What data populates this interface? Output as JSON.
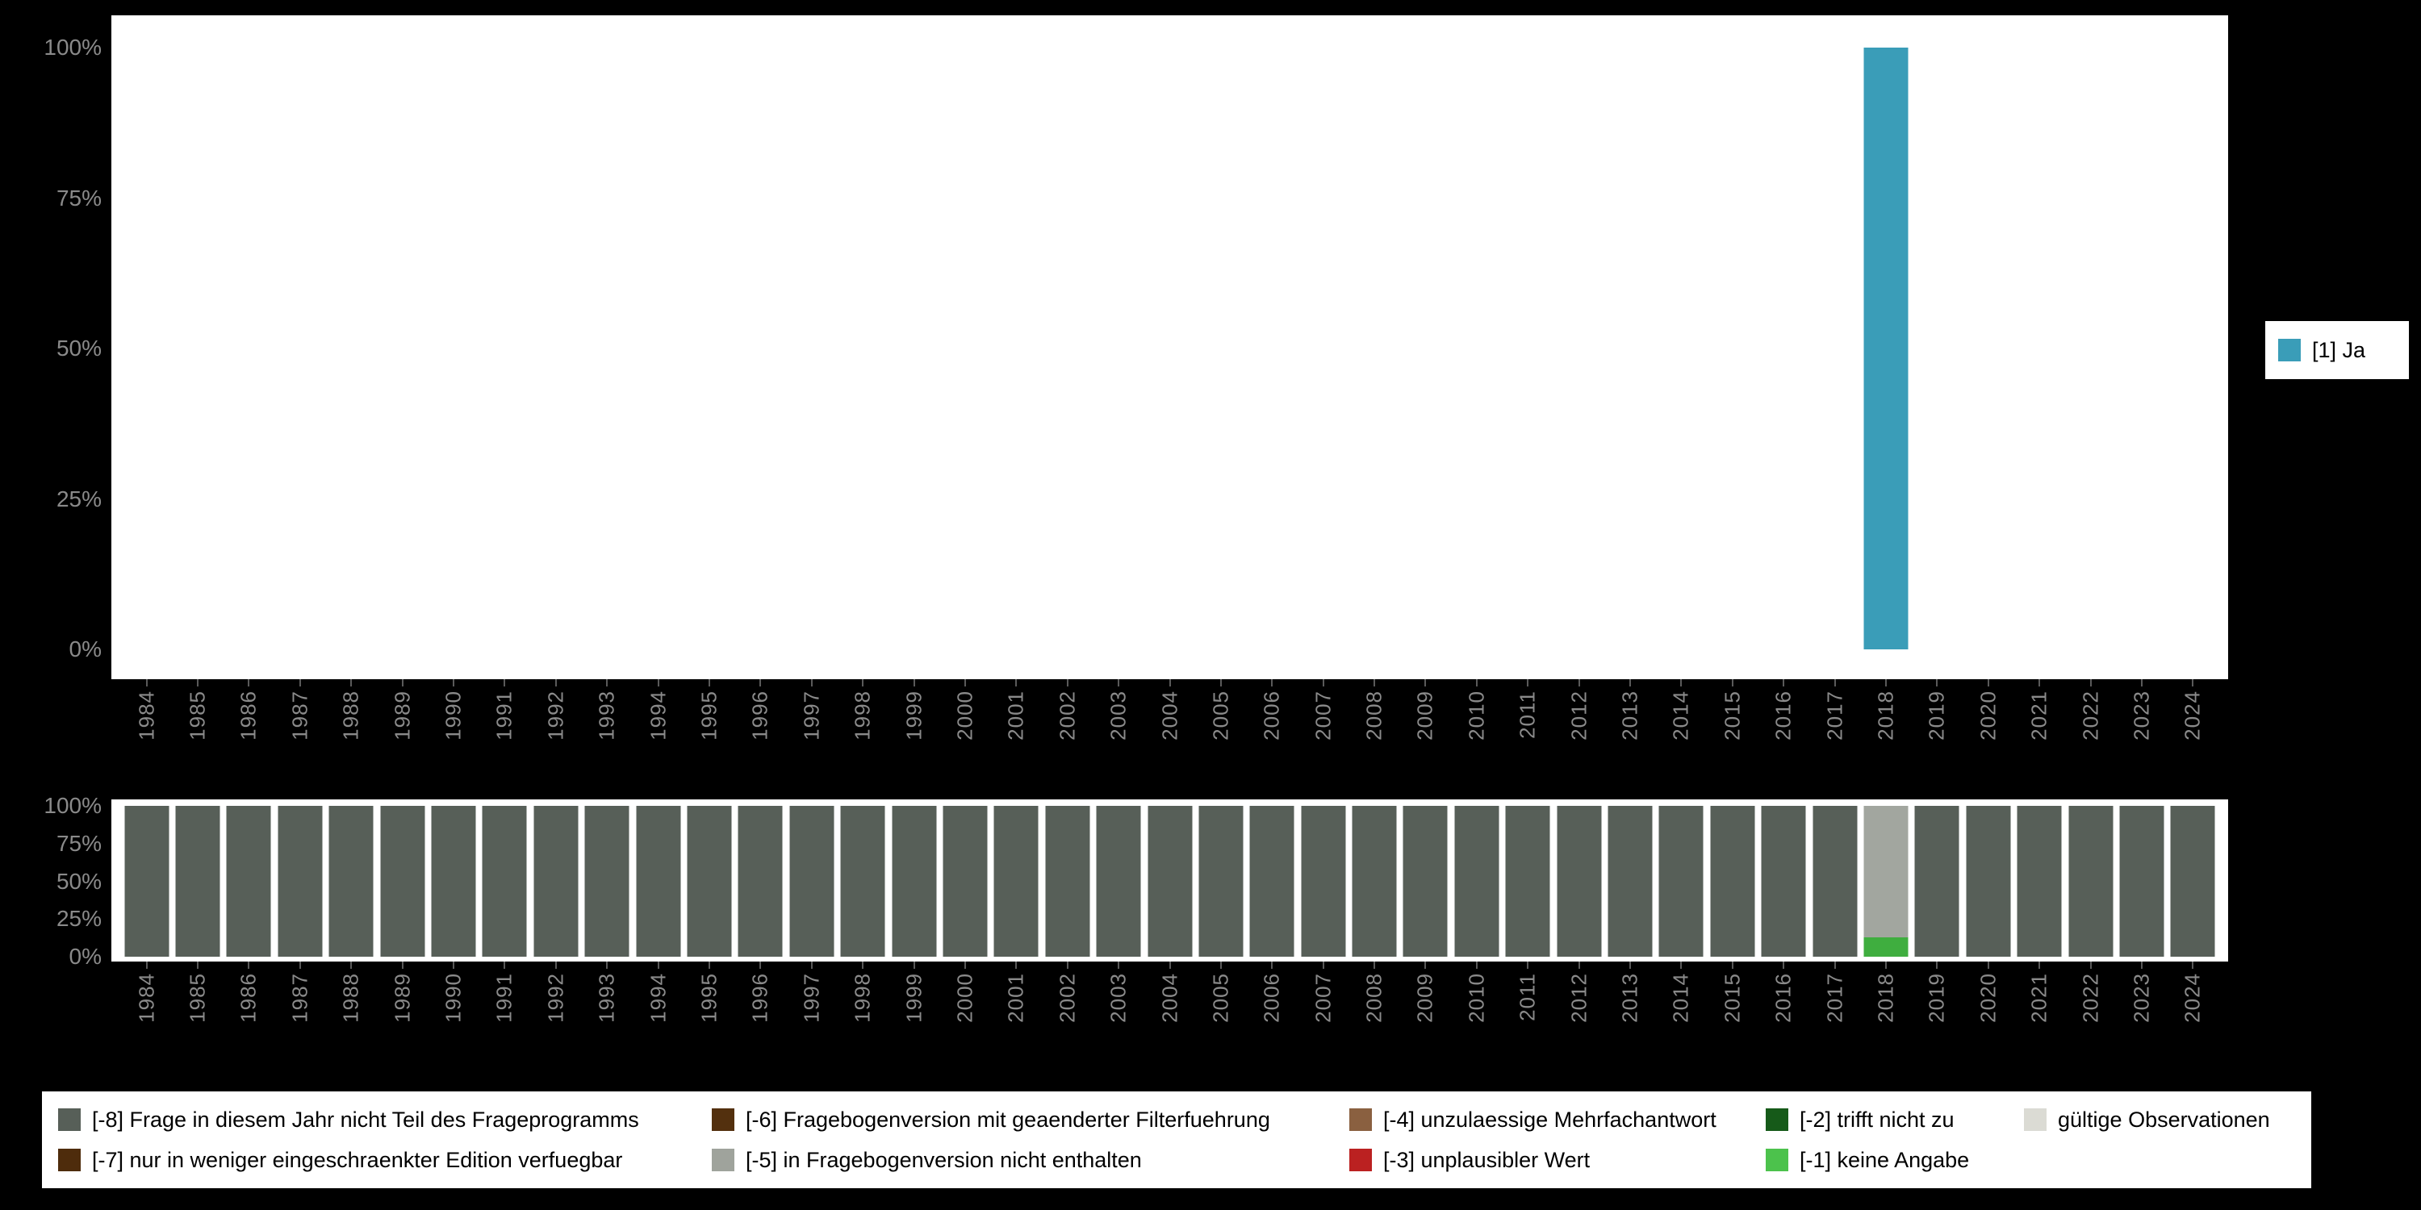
{
  "axes": {
    "years": [
      "1984",
      "1985",
      "1986",
      "1987",
      "1988",
      "1989",
      "1990",
      "1991",
      "1992",
      "1993",
      "1994",
      "1995",
      "1996",
      "1997",
      "1998",
      "1999",
      "2000",
      "2001",
      "2002",
      "2003",
      "2004",
      "2005",
      "2006",
      "2007",
      "2008",
      "2009",
      "2010",
      "2011",
      "2012",
      "2013",
      "2014",
      "2015",
      "2016",
      "2017",
      "2018",
      "2019",
      "2020",
      "2021",
      "2022",
      "2023",
      "2024"
    ],
    "y_ticks": [
      "100%",
      "75%",
      "50%",
      "25%",
      "0%"
    ]
  },
  "top_chart_legend": {
    "label": "[1] Ja",
    "color": "#3A9DB8"
  },
  "chart_data": [
    {
      "type": "bar",
      "title": "",
      "xlabel": "",
      "ylabel": "",
      "ylim": [
        0,
        100
      ],
      "y_ticks": [
        "100%",
        "75%",
        "50%",
        "25%",
        "0%"
      ],
      "grid": false,
      "legend_position": "right",
      "x": [
        "1984",
        "1985",
        "1986",
        "1987",
        "1988",
        "1989",
        "1990",
        "1991",
        "1992",
        "1993",
        "1994",
        "1995",
        "1996",
        "1997",
        "1998",
        "1999",
        "2000",
        "2001",
        "2002",
        "2003",
        "2004",
        "2005",
        "2006",
        "2007",
        "2008",
        "2009",
        "2010",
        "2011",
        "2012",
        "2013",
        "2014",
        "2015",
        "2016",
        "2017",
        "2018",
        "2019",
        "2020",
        "2021",
        "2022",
        "2023",
        "2024"
      ],
      "series": [
        {
          "name": "[1] Ja",
          "color": "#3A9DB8",
          "values": [
            0,
            0,
            0,
            0,
            0,
            0,
            0,
            0,
            0,
            0,
            0,
            0,
            0,
            0,
            0,
            0,
            0,
            0,
            0,
            0,
            0,
            0,
            0,
            0,
            0,
            0,
            0,
            0,
            0,
            0,
            0,
            0,
            0,
            0,
            100,
            0,
            0,
            0,
            0,
            0,
            0
          ]
        }
      ]
    },
    {
      "type": "stacked-bar",
      "title": "",
      "xlabel": "",
      "ylabel": "",
      "ylim": [
        0,
        100
      ],
      "y_ticks": [
        "100%",
        "75%",
        "50%",
        "25%",
        "0%"
      ],
      "grid": false,
      "legend_position": "bottom",
      "x": [
        "1984",
        "1985",
        "1986",
        "1987",
        "1988",
        "1989",
        "1990",
        "1991",
        "1992",
        "1993",
        "1994",
        "1995",
        "1996",
        "1997",
        "1998",
        "1999",
        "2000",
        "2001",
        "2002",
        "2003",
        "2004",
        "2005",
        "2006",
        "2007",
        "2008",
        "2009",
        "2010",
        "2011",
        "2012",
        "2013",
        "2014",
        "2015",
        "2016",
        "2017",
        "2018",
        "2019",
        "2020",
        "2021",
        "2022",
        "2023",
        "2024"
      ],
      "series": [
        {
          "name": "[-8] Frage in diesem Jahr nicht Teil des Frageprogramms",
          "color": "#575F58",
          "values": [
            100,
            100,
            100,
            100,
            100,
            100,
            100,
            100,
            100,
            100,
            100,
            100,
            100,
            100,
            100,
            100,
            100,
            100,
            100,
            100,
            100,
            100,
            100,
            100,
            100,
            100,
            100,
            100,
            100,
            100,
            100,
            100,
            100,
            100,
            0,
            100,
            100,
            100,
            100,
            100,
            100
          ]
        },
        {
          "name": "[-1] keine Angabe",
          "color": "#3FAE3F",
          "values": [
            0,
            0,
            0,
            0,
            0,
            0,
            0,
            0,
            0,
            0,
            0,
            0,
            0,
            0,
            0,
            0,
            0,
            0,
            0,
            0,
            0,
            0,
            0,
            0,
            0,
            0,
            0,
            0,
            0,
            0,
            0,
            0,
            0,
            0,
            13,
            0,
            0,
            0,
            0,
            0,
            0
          ]
        },
        {
          "name": "[-5] in Fragebogenversion nicht enthalten",
          "color": "#A2A69F",
          "values": [
            0,
            0,
            0,
            0,
            0,
            0,
            0,
            0,
            0,
            0,
            0,
            0,
            0,
            0,
            0,
            0,
            0,
            0,
            0,
            0,
            0,
            0,
            0,
            0,
            0,
            0,
            0,
            0,
            0,
            0,
            0,
            0,
            0,
            0,
            87,
            0,
            0,
            0,
            0,
            0,
            0
          ]
        }
      ]
    }
  ],
  "legend_panel": {
    "items": [
      {
        "label": "[-8] Frage in diesem Jahr nicht Teil des Frageprogramms",
        "color": "#575F58"
      },
      {
        "label": "[-6] Fragebogenversion mit geaenderter Filterfuehrung",
        "color": "#53300E"
      },
      {
        "label": "[-4] unzulaessige Mehrfachantwort",
        "color": "#8A6040"
      },
      {
        "label": "[-2] trifft nicht zu",
        "color": "#165A19"
      },
      {
        "label": "gültige Observationen",
        "color": "#DBDBD4"
      },
      {
        "label": "[-7] nur in weniger eingeschraenkter Edition verfuegbar",
        "color": "#4E2C0C"
      },
      {
        "label": "[-5] in Fragebogenversion nicht enthalten",
        "color": "#9FA39C"
      },
      {
        "label": "[-3] unplausibler Wert",
        "color": "#BB2121"
      },
      {
        "label": "[-1] keine Angabe",
        "color": "#4CC24C"
      }
    ]
  }
}
